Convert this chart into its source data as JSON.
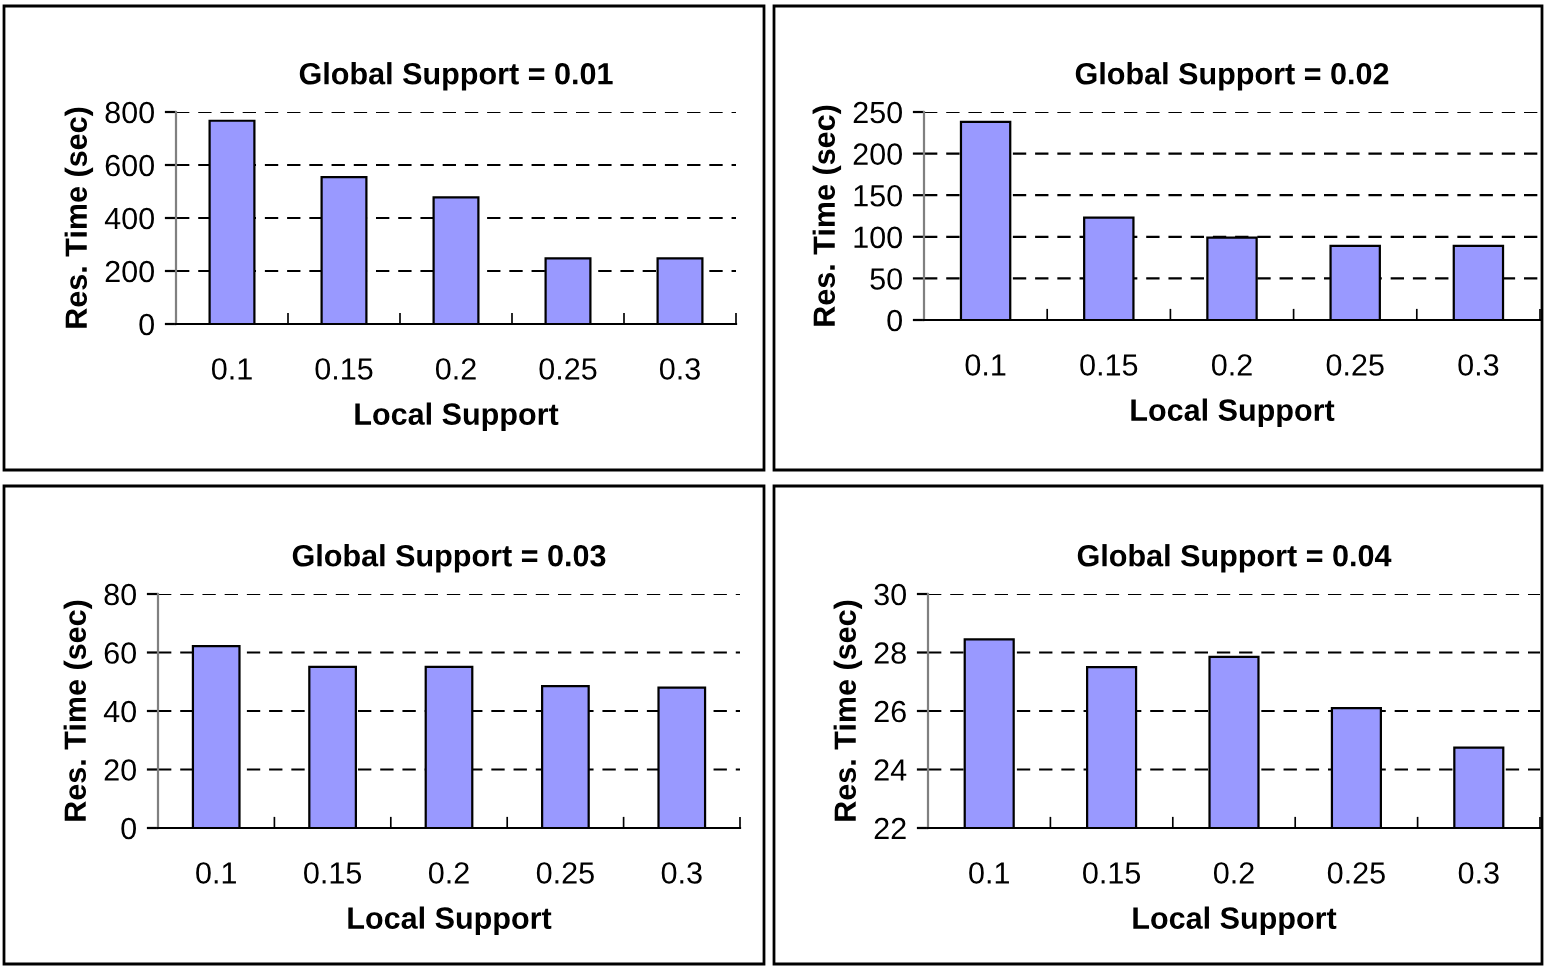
{
  "chart_data": [
    {
      "type": "bar",
      "title": "Global Support = 0.01",
      "xlabel": "Local Support",
      "ylabel": "Res. Time (sec)",
      "categories": [
        "0.1",
        "0.15",
        "0.2",
        "0.25",
        "0.3"
      ],
      "values": [
        767,
        554,
        478,
        248,
        248
      ],
      "color": "#9999ff",
      "ylim": [
        0,
        800
      ],
      "yticks": [
        0,
        200,
        400,
        600,
        800
      ],
      "grid": "y"
    },
    {
      "type": "bar",
      "title": "Global Support = 0.02",
      "xlabel": "Local Support",
      "ylabel": "Res. Time (sec)",
      "categories": [
        "0.1",
        "0.15",
        "0.2",
        "0.25",
        "0.3"
      ],
      "values": [
        238,
        123,
        99,
        89,
        89
      ],
      "color": "#9999ff",
      "ylim": [
        0,
        250
      ],
      "yticks": [
        0,
        50,
        100,
        150,
        200,
        250
      ],
      "grid": "y"
    },
    {
      "type": "bar",
      "title": "Global Support = 0.03",
      "xlabel": "Local Support",
      "ylabel": "Res. Time (sec)",
      "categories": [
        "0.1",
        "0.15",
        "0.2",
        "0.25",
        "0.3"
      ],
      "values": [
        62.2,
        55.1,
        55.1,
        48.5,
        48
      ],
      "color": "#9999ff",
      "ylim": [
        0,
        80
      ],
      "yticks": [
        0,
        20,
        40,
        60,
        80
      ],
      "grid": "y"
    },
    {
      "type": "bar",
      "title": "Global Support = 0.04",
      "xlabel": "Local Support",
      "ylabel": "Res. Time (sec)",
      "categories": [
        "0.1",
        "0.15",
        "0.2",
        "0.25",
        "0.3"
      ],
      "values": [
        28.45,
        27.5,
        27.85,
        26.1,
        24.75
      ],
      "color": "#9999ff",
      "ylim": [
        22,
        30
      ],
      "yticks": [
        22,
        24,
        26,
        28,
        30
      ],
      "grid": "y"
    }
  ]
}
